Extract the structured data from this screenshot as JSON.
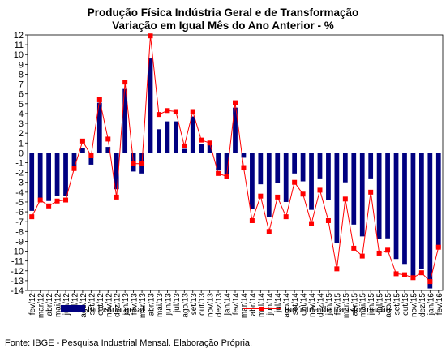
{
  "chart_data": {
    "type": "bar",
    "title": "Produção Física Indústria Geral e de Transformação",
    "subtitle": "Variação em Igual Mês do Ano Anterior - %",
    "xlabel": "",
    "ylabel": "",
    "ylim": [
      -14,
      12
    ],
    "yticks": [
      -14,
      -13,
      -12,
      -11,
      -10,
      -9,
      -8,
      -7,
      -6,
      -5,
      -4,
      -3,
      -2,
      -1,
      0,
      1,
      2,
      3,
      4,
      5,
      6,
      7,
      8,
      9,
      10,
      11,
      12
    ],
    "grid": false,
    "legend_position": "bottom",
    "categories": [
      "fev/12",
      "mar/12",
      "abr/12",
      "mai/12",
      "jun/12",
      "jul/12",
      "ago/12",
      "set/12",
      "out/12",
      "nov/12",
      "dez/12",
      "jan/13",
      "fev/13",
      "mar/13",
      "abr/13",
      "mai/13",
      "jun/13",
      "jul/13",
      "ago/13",
      "set/13",
      "out/13",
      "nov/13",
      "dez/13",
      "jan/14",
      "fev/14",
      "mar/14",
      "abr/14",
      "mai/14",
      "jun/14",
      "jul/14",
      "ago/14",
      "set/14",
      "out/14",
      "nov/14",
      "dez/14",
      "jan/15",
      "fev/15",
      "mar/15",
      "abr/15",
      "mai/15",
      "jun/15",
      "jul/15",
      "ago/15",
      "set/15",
      "out/15",
      "nov/15",
      "dez/15",
      "jan/16",
      "fev/16"
    ],
    "tick_labels": [
      "fev/12",
      "mar/12",
      "abr/12",
      "mai/12",
      "jun/12",
      "jul/12",
      "ago/12",
      "set/12",
      "out/12",
      "nov/12",
      "dez/12",
      "jan/13",
      "fev/13",
      "mar/13",
      "abr/13",
      "mai/13",
      "jun/13",
      "jul/13",
      "ago/13",
      "set/13",
      "out/13",
      "nov/13",
      "dez/13",
      "jan/14",
      "fev/14",
      "mar/14",
      "abr/14",
      "mai/14",
      "jun/14",
      "jul/14",
      "ago/14",
      "set/14",
      "out/14",
      "nov/14",
      "dez/14",
      "jan/15",
      "fev/15",
      "mar/15",
      "abr/15",
      "mai/15",
      "jun/15",
      "jul/15",
      "ago/15",
      "set/15",
      "out/15",
      "nov/15",
      "dez/15",
      "jan/16",
      "fev/16"
    ],
    "series": [
      {
        "name": "Indústria geral",
        "type": "bar",
        "color": "#000080",
        "values": [
          -5.9,
          -4.6,
          -4.9,
          -4.4,
          -4.4,
          -1.3,
          0.5,
          -1.2,
          5.1,
          0.6,
          -3.7,
          6.5,
          -1.9,
          -2.1,
          9.6,
          2.4,
          3.2,
          3.2,
          0.4,
          3.7,
          0.9,
          0.8,
          -1.8,
          -2.2,
          4.6,
          -0.5,
          -5.7,
          -3.2,
          -6.5,
          -3.1,
          -5.0,
          -2.1,
          -2.9,
          -5.8,
          -2.6,
          -4.8,
          -9.2,
          -3.0,
          -7.3,
          -8.5,
          -2.6,
          -8.8,
          -8.7,
          -10.8,
          -11.3,
          -12.6,
          -11.8,
          -13.8,
          -9.7
        ]
      },
      {
        "name": "Indústria de transformação",
        "type": "line",
        "color": "#ff0000",
        "values": [
          -6.5,
          -4.8,
          -5.4,
          -4.9,
          -4.8,
          -1.6,
          1.2,
          -0.3,
          5.4,
          1.4,
          -4.5,
          7.2,
          -1.1,
          -1.1,
          11.9,
          3.9,
          4.3,
          4.2,
          0.7,
          4.2,
          1.3,
          1.0,
          -2.1,
          -2.4,
          5.1,
          -1.5,
          -6.9,
          -4.4,
          -8.0,
          -4.5,
          -6.5,
          -3.0,
          -4.2,
          -7.2,
          -3.8,
          -6.9,
          -11.8,
          -4.7,
          -9.7,
          -10.5,
          -4.0,
          -10.2,
          -9.9,
          -12.3,
          -12.4,
          -12.7,
          -12.2,
          -13.1,
          -9.6
        ]
      }
    ]
  },
  "source": "Fonte: IBGE - Pesquisa Industrial Mensal. Elaboração Própria."
}
